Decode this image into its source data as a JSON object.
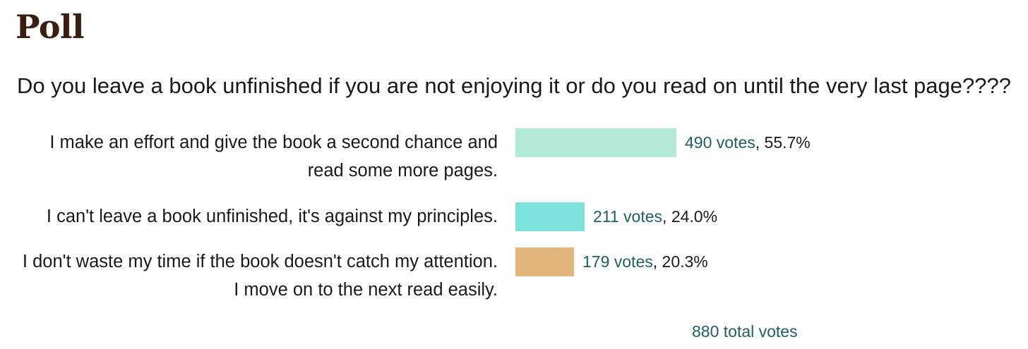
{
  "poll": {
    "title": "Poll",
    "question": "Do you leave a book unfinished if you are not enjoying it or do you read on until the very last page????",
    "options": [
      {
        "label": "I make an effort and give the book a second chance and read some more pages.",
        "votes_text": "490 votes",
        "percent_text": "55.7%",
        "share": 0.557,
        "color": "#b2ead6"
      },
      {
        "label": "I can't leave a book unfinished, it's against my principles.",
        "votes_text": "211 votes",
        "percent_text": "24.0%",
        "share": 0.24,
        "color": "#7de2dc"
      },
      {
        "label": "I don't waste my time if the book doesn't catch my attention. I move on to the next read easily.",
        "votes_text": "179 votes",
        "percent_text": "20.3%",
        "share": 0.203,
        "color": "#e2b57a"
      }
    ],
    "total_votes_text": "880 total votes"
  }
}
